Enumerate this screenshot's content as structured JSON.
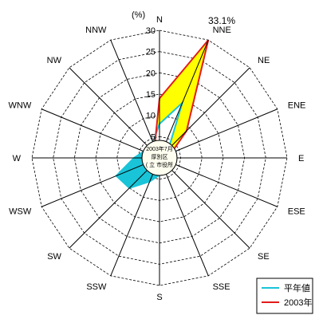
{
  "chart_data": {
    "type": "radar",
    "directions": [
      "N",
      "NNE",
      "NE",
      "ENE",
      "E",
      "ESE",
      "SE",
      "SSE",
      "S",
      "SSW",
      "SW",
      "WSW",
      "W",
      "WNW",
      "NW",
      "NNW"
    ],
    "unit_label": "(%)",
    "r_ticks": [
      5,
      10,
      15,
      20,
      25,
      30
    ],
    "r_max": 30,
    "peak_label": "33.1%",
    "center_text": [
      "2003年7月",
      "厚別区",
      "( 立 市役所"
    ],
    "series": [
      {
        "name": "平年値",
        "color": "#19c4d8",
        "values": [
          8,
          14,
          3,
          4,
          1.5,
          3.5,
          3.5,
          2.5,
          4,
          6,
          10,
          11,
          6,
          4,
          4,
          4
        ]
      },
      {
        "name": "2003年",
        "color": "#e21b1b",
        "values": [
          14,
          33.1,
          9,
          3,
          2,
          1.5,
          1,
          1.5,
          2.5,
          2,
          1.5,
          1,
          1,
          1,
          1.5,
          3
        ]
      }
    ],
    "fill_between_color": "#ffff00",
    "grid": true,
    "legend_position": "bottom-right"
  }
}
